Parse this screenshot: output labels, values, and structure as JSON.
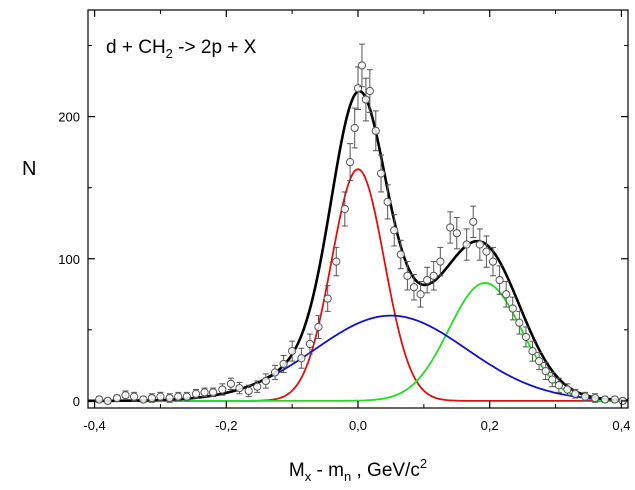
{
  "chart_data": {
    "type": "scatter",
    "title": "",
    "annotation": {
      "main": "d + CH",
      "sub": "2",
      "rest": " -> 2p + X"
    },
    "ylabel": "N",
    "xlabel": {
      "main": "M",
      "sub1": "x",
      "mid": " - m",
      "sub2": "n",
      "rest": " , GeV/c",
      "sup": "2"
    },
    "xlim": [
      -0.41,
      0.41
    ],
    "ylim": [
      -5,
      275
    ],
    "xticks": [
      -0.4,
      -0.2,
      0.0,
      0.2,
      0.4
    ],
    "xtick_labels": [
      "-0,4",
      "-0,2",
      "0,0",
      "0,2",
      "0,4"
    ],
    "yticks": [
      0,
      100,
      200
    ],
    "ytick_labels": [
      "0",
      "100",
      "200"
    ],
    "grid": false,
    "colors": {
      "total": "#000000",
      "red": "#e01010",
      "green": "#22dd22",
      "blue": "#1010cc",
      "points": "#555555"
    },
    "points": [
      {
        "x": -0.393,
        "y": 1,
        "e": 2
      },
      {
        "x": -0.38,
        "y": 0,
        "e": 2
      },
      {
        "x": -0.366,
        "y": 2,
        "e": 2
      },
      {
        "x": -0.353,
        "y": 4,
        "e": 3
      },
      {
        "x": -0.34,
        "y": 3,
        "e": 3
      },
      {
        "x": -0.326,
        "y": 1,
        "e": 2
      },
      {
        "x": -0.313,
        "y": 2,
        "e": 3
      },
      {
        "x": -0.3,
        "y": 3,
        "e": 3
      },
      {
        "x": -0.286,
        "y": 2,
        "e": 3
      },
      {
        "x": -0.273,
        "y": 3,
        "e": 3
      },
      {
        "x": -0.26,
        "y": 3,
        "e": 3
      },
      {
        "x": -0.246,
        "y": 5,
        "e": 3
      },
      {
        "x": -0.233,
        "y": 6,
        "e": 3
      },
      {
        "x": -0.22,
        "y": 6,
        "e": 3
      },
      {
        "x": -0.206,
        "y": 8,
        "e": 4
      },
      {
        "x": -0.193,
        "y": 12,
        "e": 4
      },
      {
        "x": -0.18,
        "y": 9,
        "e": 4
      },
      {
        "x": -0.166,
        "y": 7,
        "e": 4
      },
      {
        "x": -0.153,
        "y": 10,
        "e": 4
      },
      {
        "x": -0.14,
        "y": 14,
        "e": 5
      },
      {
        "x": -0.126,
        "y": 20,
        "e": 5
      },
      {
        "x": -0.113,
        "y": 26,
        "e": 6
      },
      {
        "x": -0.1,
        "y": 35,
        "e": 7
      },
      {
        "x": -0.086,
        "y": 30,
        "e": 7
      },
      {
        "x": -0.073,
        "y": 40,
        "e": 7
      },
      {
        "x": -0.06,
        "y": 52,
        "e": 8
      },
      {
        "x": -0.046,
        "y": 72,
        "e": 9
      },
      {
        "x": -0.033,
        "y": 98,
        "e": 10
      },
      {
        "x": -0.02,
        "y": 135,
        "e": 12
      },
      {
        "x": -0.012,
        "y": 168,
        "e": 13
      },
      {
        "x": -0.005,
        "y": 192,
        "e": 14
      },
      {
        "x": 0.0,
        "y": 220,
        "e": 15
      },
      {
        "x": 0.006,
        "y": 236,
        "e": 15
      },
      {
        "x": 0.012,
        "y": 212,
        "e": 15
      },
      {
        "x": 0.018,
        "y": 218,
        "e": 15
      },
      {
        "x": 0.027,
        "y": 190,
        "e": 14
      },
      {
        "x": 0.035,
        "y": 160,
        "e": 13
      },
      {
        "x": 0.045,
        "y": 140,
        "e": 12
      },
      {
        "x": 0.055,
        "y": 120,
        "e": 11
      },
      {
        "x": 0.065,
        "y": 103,
        "e": 10
      },
      {
        "x": 0.075,
        "y": 88,
        "e": 10
      },
      {
        "x": 0.085,
        "y": 80,
        "e": 9
      },
      {
        "x": 0.095,
        "y": 75,
        "e": 9
      },
      {
        "x": 0.105,
        "y": 85,
        "e": 9
      },
      {
        "x": 0.115,
        "y": 88,
        "e": 10
      },
      {
        "x": 0.125,
        "y": 98,
        "e": 10
      },
      {
        "x": 0.14,
        "y": 122,
        "e": 11
      },
      {
        "x": 0.15,
        "y": 118,
        "e": 11
      },
      {
        "x": 0.165,
        "y": 110,
        "e": 11
      },
      {
        "x": 0.175,
        "y": 126,
        "e": 11
      },
      {
        "x": 0.185,
        "y": 110,
        "e": 11
      },
      {
        "x": 0.195,
        "y": 105,
        "e": 11
      },
      {
        "x": 0.205,
        "y": 98,
        "e": 10
      },
      {
        "x": 0.215,
        "y": 85,
        "e": 10
      },
      {
        "x": 0.225,
        "y": 75,
        "e": 9
      },
      {
        "x": 0.235,
        "y": 65,
        "e": 8
      },
      {
        "x": 0.245,
        "y": 55,
        "e": 8
      },
      {
        "x": 0.255,
        "y": 45,
        "e": 7
      },
      {
        "x": 0.265,
        "y": 35,
        "e": 7
      },
      {
        "x": 0.275,
        "y": 28,
        "e": 6
      },
      {
        "x": 0.285,
        "y": 21,
        "e": 6
      },
      {
        "x": 0.295,
        "y": 15,
        "e": 5
      },
      {
        "x": 0.305,
        "y": 11,
        "e": 5
      },
      {
        "x": 0.318,
        "y": 8,
        "e": 4
      },
      {
        "x": 0.33,
        "y": 5,
        "e": 3
      },
      {
        "x": 0.345,
        "y": 3,
        "e": 3
      },
      {
        "x": 0.36,
        "y": 2,
        "e": 3
      },
      {
        "x": 0.375,
        "y": 1,
        "e": 2
      },
      {
        "x": 0.39,
        "y": 1,
        "e": 2
      },
      {
        "x": 0.402,
        "y": 0,
        "e": 2
      }
    ],
    "fits": [
      {
        "color": "red",
        "components": [
          {
            "amp": 163,
            "mu": 0.0,
            "sigma": 0.04
          }
        ]
      },
      {
        "color": "green",
        "components": [
          {
            "amp": 83,
            "mu": 0.193,
            "sigma": 0.055
          }
        ]
      },
      {
        "color": "blue",
        "components": [
          {
            "amp": 60,
            "mu": 0.05,
            "sigma": 0.115
          }
        ]
      },
      {
        "color": "total",
        "components": [
          {
            "amp": 163,
            "mu": 0.0,
            "sigma": 0.04
          },
          {
            "amp": 83,
            "mu": 0.193,
            "sigma": 0.055
          },
          {
            "amp": 60,
            "mu": 0.05,
            "sigma": 0.115
          }
        ]
      }
    ]
  }
}
